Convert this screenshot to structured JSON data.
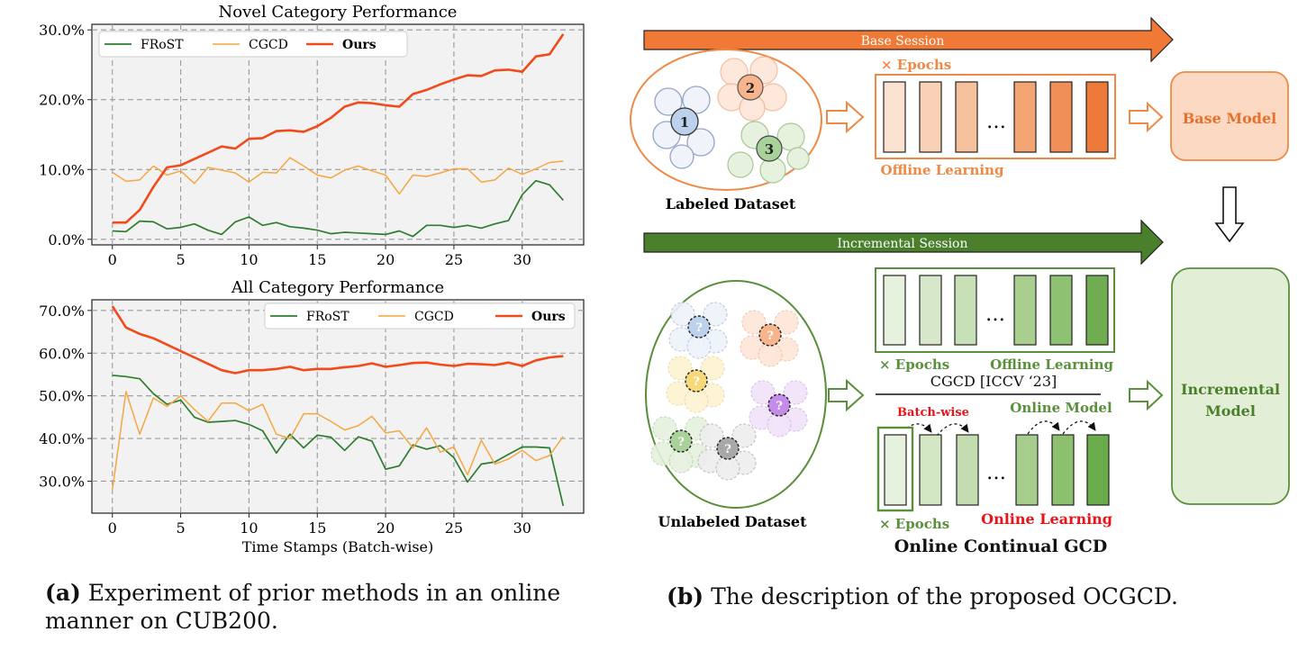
{
  "panel_a": {
    "xlabel": "Time Stamps (Batch-wise)",
    "caption_tag": "(a)",
    "caption_text": " Experiment of prior methods in an online manner on CUB200."
  },
  "chart_data": [
    {
      "type": "line",
      "title": "Novel Category Performance",
      "xlabel": "",
      "ylabel": "",
      "xlim": [
        -1.5,
        34.5
      ],
      "ylim": [
        -0.8,
        30.8
      ],
      "xticks": [
        0,
        5,
        10,
        15,
        20,
        25,
        30
      ],
      "yticks": [
        0,
        10,
        20,
        30
      ],
      "ytick_labels": [
        "0.0%",
        "10.0%",
        "20.0%",
        "30.0%"
      ],
      "grid": true,
      "legend": "top-left",
      "x": [
        0,
        1,
        2,
        3,
        4,
        5,
        6,
        7,
        8,
        9,
        10,
        11,
        12,
        13,
        14,
        15,
        16,
        17,
        18,
        19,
        20,
        21,
        22,
        23,
        24,
        25,
        26,
        27,
        28,
        29,
        30,
        31,
        32,
        33
      ],
      "series": [
        {
          "name": "FRoST",
          "color": "#2e7d2e",
          "values": [
            1.2,
            1.1,
            2.6,
            2.5,
            1.5,
            1.7,
            2.2,
            1.3,
            0.7,
            2.5,
            3.2,
            2.0,
            2.4,
            1.8,
            1.6,
            1.3,
            0.8,
            1.0,
            0.9,
            0.8,
            0.7,
            1.2,
            0.4,
            2.0,
            2.0,
            1.7,
            2.0,
            1.6,
            2.2,
            2.7,
            6.4,
            8.4,
            7.8,
            5.6
          ]
        },
        {
          "name": "CGCD",
          "color": "#f4a742",
          "values": [
            9.6,
            8.3,
            8.5,
            10.5,
            9.2,
            9.8,
            8.0,
            10.3,
            9.9,
            9.5,
            8.2,
            9.6,
            9.5,
            11.7,
            10.5,
            9.2,
            8.8,
            9.9,
            10.5,
            9.8,
            9.2,
            6.5,
            9.2,
            9.0,
            9.5,
            10.1,
            10.1,
            8.2,
            8.5,
            10.2,
            9.3,
            10.1,
            11.0,
            11.2
          ]
        },
        {
          "name": "Ours",
          "color": "#f24a1a",
          "values": [
            2.4,
            2.4,
            4.2,
            7.5,
            10.3,
            10.6,
            11.5,
            12.4,
            13.3,
            13.0,
            14.4,
            14.5,
            15.5,
            15.6,
            15.4,
            16.2,
            17.4,
            19.0,
            19.6,
            19.5,
            19.2,
            19.0,
            20.8,
            21.4,
            22.2,
            22.9,
            23.5,
            23.4,
            24.2,
            24.3,
            24.0,
            26.2,
            26.5,
            29.4
          ]
        }
      ]
    },
    {
      "type": "line",
      "title": "All Category Performance",
      "xlabel": "Time Stamps (Batch-wise)",
      "ylabel": "",
      "xlim": [
        -1.5,
        34.5
      ],
      "ylim": [
        22.5,
        72.5
      ],
      "xticks": [
        0,
        5,
        10,
        15,
        20,
        25,
        30
      ],
      "yticks": [
        30,
        40,
        50,
        60,
        70
      ],
      "ytick_labels": [
        "30.0%",
        "40.0%",
        "50.0%",
        "60.0%",
        "70.0%"
      ],
      "grid": true,
      "legend": "top-right",
      "x": [
        0,
        1,
        2,
        3,
        4,
        5,
        6,
        7,
        8,
        9,
        10,
        11,
        12,
        13,
        14,
        15,
        16,
        17,
        18,
        19,
        20,
        21,
        22,
        23,
        24,
        25,
        26,
        27,
        28,
        29,
        30,
        31,
        32,
        33
      ],
      "series": [
        {
          "name": "FRoST",
          "color": "#2e7d2e",
          "values": [
            54.8,
            54.5,
            54.0,
            50.5,
            48.0,
            49.0,
            45.0,
            43.8,
            44.0,
            44.2,
            43.3,
            41.8,
            36.6,
            41.0,
            37.8,
            40.8,
            40.3,
            37.2,
            40.4,
            39.4,
            32.8,
            33.6,
            38.5,
            37.5,
            38.3,
            35.5,
            29.8,
            34.0,
            34.5,
            36.3,
            38.0,
            38.0,
            37.8,
            24.2
          ]
        },
        {
          "name": "CGCD",
          "color": "#f4a742",
          "values": [
            28.0,
            51.0,
            41.0,
            49.5,
            47.5,
            50.0,
            46.8,
            44.0,
            48.3,
            48.3,
            46.5,
            48.0,
            41.0,
            40.0,
            45.8,
            45.8,
            44.0,
            42.0,
            43.0,
            45.2,
            41.3,
            41.8,
            37.8,
            42.5,
            36.8,
            38.0,
            31.5,
            39.6,
            34.0,
            35.2,
            37.2,
            34.8,
            36.0,
            40.5
          ]
        },
        {
          "name": "Ours",
          "color": "#f24a1a",
          "values": [
            71.0,
            66.0,
            64.5,
            63.5,
            62.0,
            60.5,
            59.0,
            57.5,
            56.0,
            55.3,
            56.0,
            56.0,
            56.3,
            56.8,
            56.0,
            56.3,
            56.3,
            56.7,
            57.0,
            57.6,
            56.8,
            57.2,
            57.7,
            57.8,
            57.3,
            57.0,
            57.5,
            57.4,
            57.2,
            57.8,
            57.0,
            58.3,
            59.0,
            59.3
          ]
        }
      ]
    }
  ],
  "panel_b": {
    "base_session_label": "Base Session",
    "incremental_session_label": "Incremental Session",
    "labeled_dataset_label": "Labeled Dataset",
    "unlabeled_dataset_label": "Unlabeled Dataset",
    "cluster_numbers": [
      "1",
      "2",
      "3"
    ],
    "unknown_mark": "?",
    "epochs_label": "× Epochs",
    "offline_learning_label": "Offline Learning",
    "ellipsis": "…",
    "base_model_label": "Base Model",
    "incremental_model_line1": "Incremental",
    "incremental_model_line2": "Model",
    "cgcd_ref_label": "CGCD [ICCV ‘23]",
    "batch_wise_label": "Batch-wise",
    "online_model_label": "Online Model",
    "online_learning_label": "Online Learning",
    "online_continual_label": "Online Continual GCD",
    "caption_tag": "(b)",
    "caption_text": " The description of the proposed OCGCD.",
    "colors": {
      "base_arrow": "#f07a35",
      "incremental_arrow": "#4a7f2c",
      "orange_border": "#ee8a45",
      "green_border": "#5a8f3c",
      "online_red": "#e8141a",
      "base_model_fill": "#fbd9c3",
      "incremental_model_fill": "#e2efd6"
    }
  }
}
